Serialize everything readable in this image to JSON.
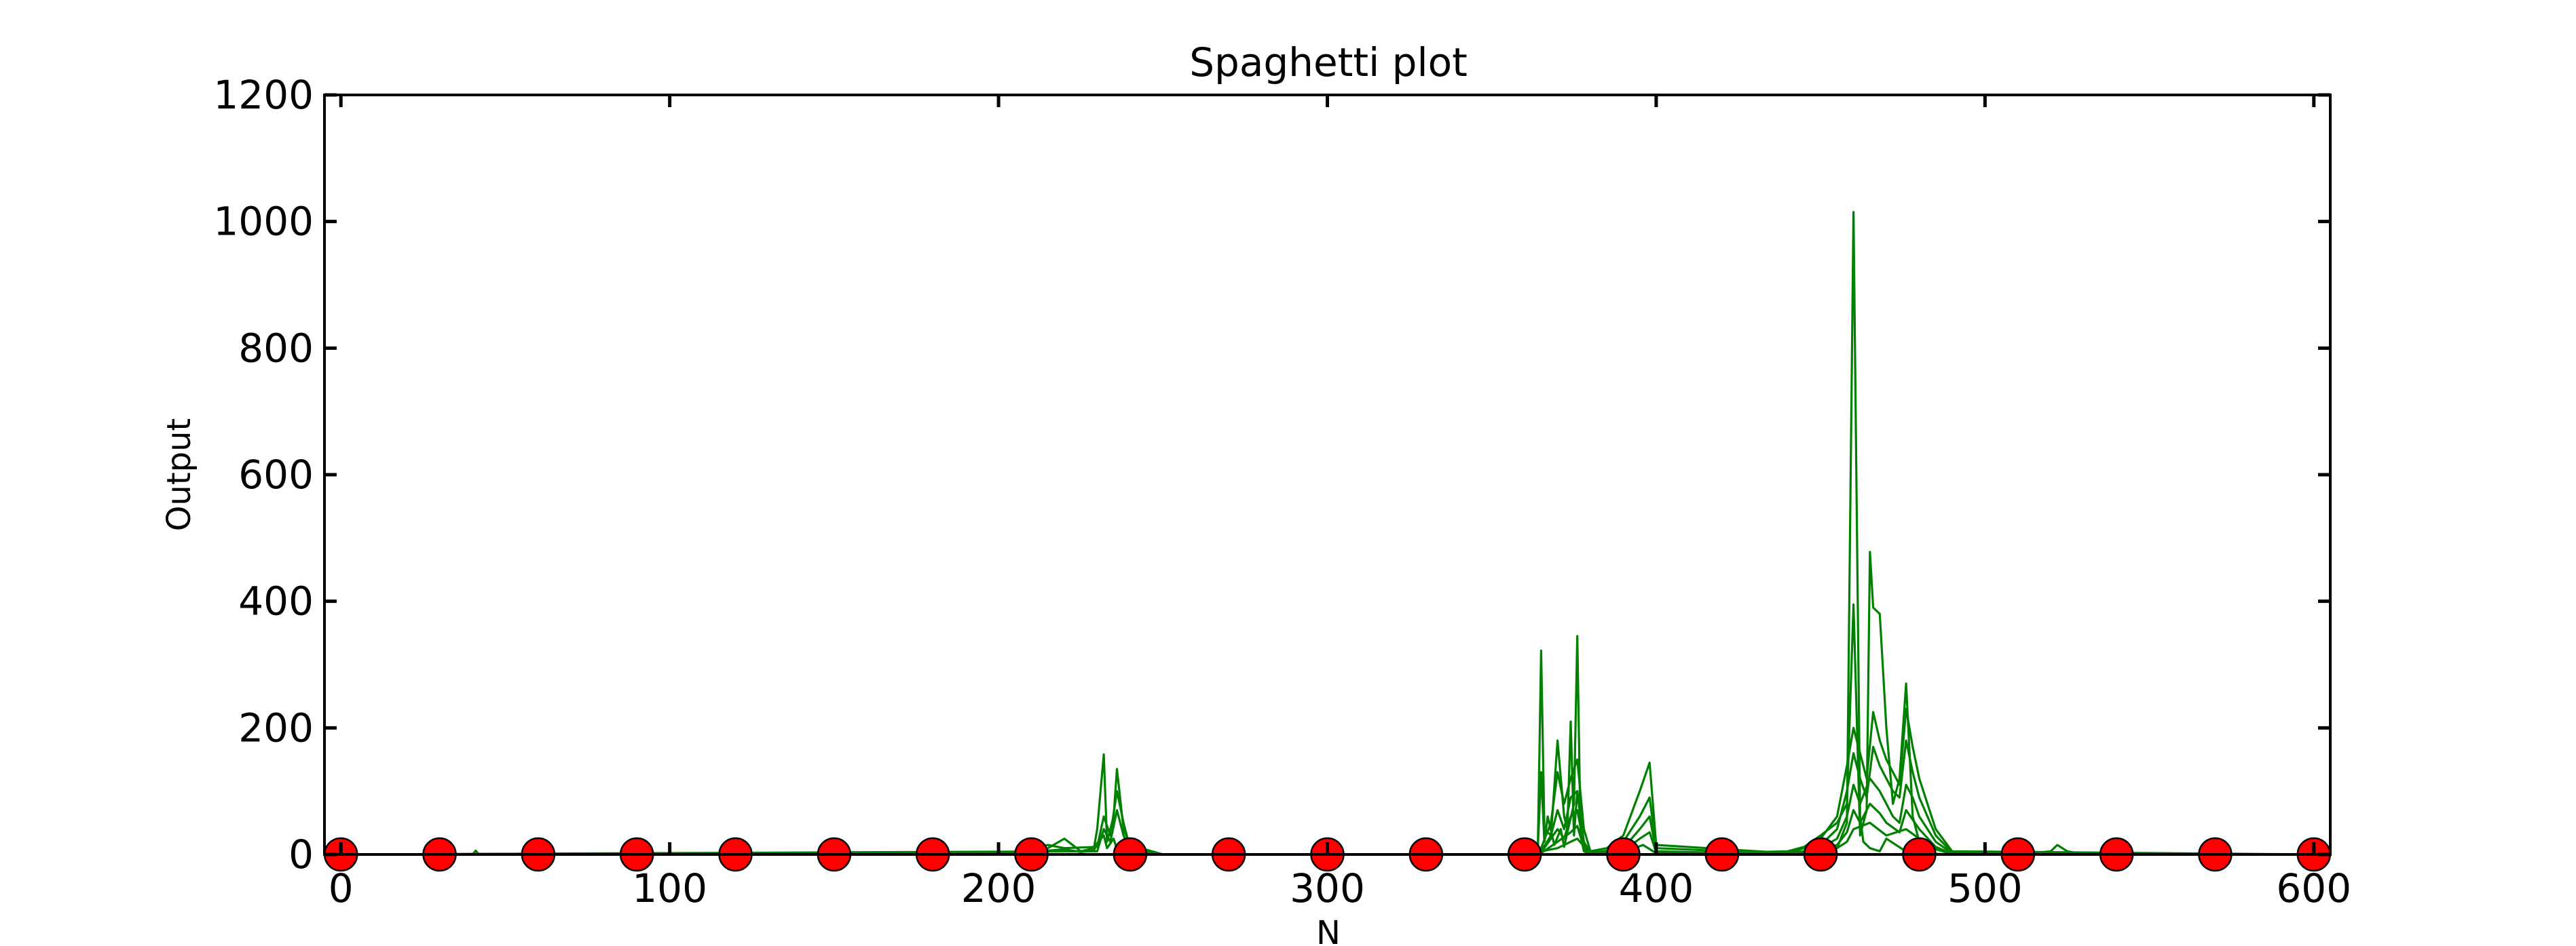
{
  "colors": {
    "background": "#ffffff",
    "axes": "#000000",
    "series": "#008000",
    "markers": "#ff0000",
    "marker_edge": "#000000"
  },
  "chart_data": {
    "type": "line",
    "title": "Spaghetti plot",
    "xlabel": "N",
    "ylabel": "Output",
    "xlim": [
      -5,
      605
    ],
    "ylim": [
      0,
      1200
    ],
    "xticks": [
      0,
      100,
      200,
      300,
      400,
      500,
      600
    ],
    "yticks": [
      0,
      200,
      400,
      600,
      800,
      1000,
      1200
    ],
    "grid": false,
    "legend": "none",
    "series": [
      {
        "x": [
          0,
          40,
          41,
          42,
          200,
          205,
          210,
          215,
          220,
          225,
          229,
          230,
          232,
          233,
          235,
          236,
          238,
          240,
          250,
          300,
          360,
          364,
          365,
          366,
          367,
          369,
          371,
          372,
          373,
          375,
          376,
          377,
          378,
          380,
          400,
          440,
          445,
          450,
          455,
          458,
          460,
          462,
          463,
          465,
          468,
          470,
          475,
          480,
          490,
          600
        ],
        "y": [
          0,
          0,
          6,
          0,
          0,
          3,
          5,
          6,
          8,
          4,
          6,
          18,
          30,
          10,
          25,
          8,
          18,
          4,
          0,
          0,
          0,
          10,
          130,
          20,
          60,
          15,
          40,
          12,
          35,
          80,
          345,
          30,
          5,
          0,
          0,
          2,
          5,
          8,
          10,
          50,
          1015,
          60,
          20,
          10,
          5,
          25,
          8,
          2,
          0,
          0
        ]
      },
      {
        "x": [
          0,
          200,
          215,
          220,
          225,
          229,
          230,
          232,
          233,
          235,
          236,
          238,
          240,
          250,
          360,
          364,
          365,
          366,
          368,
          370,
          372,
          373,
          374,
          375,
          376,
          378,
          380,
          400,
          440,
          445,
          450,
          455,
          458,
          460,
          462,
          464,
          465,
          466,
          468,
          470,
          472,
          474,
          476,
          478,
          480,
          490,
          600
        ],
        "y": [
          0,
          0,
          10,
          25,
          5,
          10,
          40,
          158,
          20,
          60,
          135,
          40,
          15,
          0,
          0,
          5,
          322,
          40,
          30,
          180,
          60,
          40,
          210,
          30,
          100,
          10,
          0,
          0,
          5,
          12,
          30,
          50,
          80,
          395,
          30,
          70,
          478,
          390,
          380,
          200,
          80,
          120,
          270,
          60,
          20,
          0,
          0
        ]
      },
      {
        "x": [
          0,
          205,
          210,
          215,
          220,
          230,
          232,
          234,
          236,
          238,
          240,
          250,
          360,
          365,
          368,
          370,
          372,
          374,
          376,
          378,
          380,
          385,
          390,
          395,
          398,
          400,
          440,
          445,
          450,
          455,
          458,
          460,
          462,
          464,
          466,
          468,
          470,
          472,
          474,
          476,
          478,
          480,
          485,
          490,
          600
        ],
        "y": [
          0,
          2,
          8,
          15,
          10,
          12,
          60,
          30,
          100,
          50,
          10,
          0,
          0,
          10,
          50,
          130,
          80,
          120,
          150,
          40,
          5,
          10,
          30,
          100,
          145,
          15,
          2,
          10,
          25,
          60,
          140,
          200,
          160,
          120,
          225,
          180,
          150,
          130,
          110,
          230,
          170,
          120,
          40,
          5,
          0
        ]
      },
      {
        "x": [
          0,
          230,
          232,
          234,
          236,
          238,
          240,
          250,
          360,
          365,
          368,
          370,
          372,
          374,
          376,
          378,
          380,
          385,
          390,
          395,
          398,
          400,
          440,
          445,
          450,
          455,
          458,
          460,
          462,
          464,
          466,
          468,
          470,
          472,
          474,
          476,
          478,
          480,
          485,
          490,
          600
        ],
        "y": [
          0,
          5,
          40,
          20,
          70,
          30,
          5,
          0,
          0,
          5,
          30,
          70,
          40,
          90,
          100,
          20,
          3,
          5,
          20,
          60,
          90,
          10,
          1,
          5,
          15,
          40,
          100,
          160,
          120,
          90,
          170,
          140,
          120,
          100,
          90,
          180,
          130,
          90,
          30,
          3,
          0
        ]
      },
      {
        "x": [
          0,
          360,
          365,
          370,
          372,
          374,
          376,
          378,
          380,
          390,
          395,
          398,
          400,
          440,
          450,
          455,
          458,
          460,
          462,
          465,
          468,
          470,
          472,
          474,
          476,
          478,
          480,
          485,
          490,
          600
        ],
        "y": [
          0,
          0,
          3,
          40,
          25,
          60,
          70,
          15,
          2,
          10,
          40,
          60,
          5,
          0,
          10,
          25,
          60,
          110,
          80,
          120,
          100,
          80,
          60,
          50,
          110,
          90,
          60,
          20,
          2,
          0
        ]
      },
      {
        "x": [
          0,
          360,
          365,
          370,
          374,
          376,
          378,
          380,
          390,
          395,
          398,
          400,
          440,
          450,
          455,
          458,
          460,
          462,
          465,
          468,
          470,
          474,
          476,
          478,
          480,
          485,
          490,
          600
        ],
        "y": [
          0,
          0,
          2,
          20,
          35,
          45,
          10,
          1,
          5,
          25,
          35,
          3,
          0,
          5,
          15,
          35,
          70,
          50,
          80,
          65,
          50,
          35,
          70,
          55,
          40,
          12,
          1,
          0
        ]
      },
      {
        "x": [
          0,
          360,
          370,
          374,
          376,
          380,
          390,
          396,
          400,
          440,
          450,
          455,
          458,
          460,
          465,
          470,
          476,
          480,
          485,
          490,
          510,
          520,
          522,
          525,
          530,
          600
        ],
        "y": [
          0,
          0,
          10,
          20,
          25,
          1,
          3,
          15,
          2,
          0,
          3,
          10,
          20,
          40,
          50,
          30,
          40,
          25,
          8,
          1,
          0,
          5,
          15,
          5,
          0,
          0
        ]
      }
    ],
    "markers": {
      "x": [
        0,
        30,
        60,
        90,
        120,
        150,
        180,
        210,
        240,
        270,
        300,
        330,
        360,
        390,
        420,
        450,
        480,
        510,
        540,
        570,
        600
      ],
      "y": [
        0,
        0,
        0,
        0,
        0,
        0,
        0,
        0,
        0,
        0,
        0,
        0,
        0,
        0,
        0,
        0,
        0,
        0,
        0,
        0,
        0
      ]
    }
  }
}
